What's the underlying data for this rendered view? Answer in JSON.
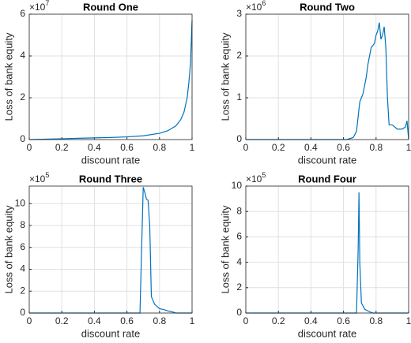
{
  "chart_data": [
    {
      "type": "line",
      "title": "Round One",
      "xlabel": "discount rate",
      "ylabel": "Loss of bank equity",
      "y_multiplier": "×10",
      "y_exponent": "7",
      "x": [
        0,
        0.1,
        0.2,
        0.3,
        0.4,
        0.5,
        0.6,
        0.7,
        0.8,
        0.85,
        0.9,
        0.93,
        0.95,
        0.97,
        0.98,
        0.99,
        1.0
      ],
      "values": [
        0,
        0.02,
        0.04,
        0.06,
        0.08,
        0.1,
        0.13,
        0.18,
        0.3,
        0.42,
        0.65,
        0.95,
        1.3,
        2.0,
        2.7,
        3.6,
        5.7
      ],
      "color": "#0072bd",
      "xlim": [
        0,
        1
      ],
      "ylim": [
        0,
        6
      ],
      "xticks": [
        0,
        0.2,
        0.4,
        0.6,
        0.8,
        1
      ],
      "yticks": [
        0,
        2,
        4,
        6
      ],
      "grid": true
    },
    {
      "type": "line",
      "title": "Round Two",
      "xlabel": "discount rate",
      "ylabel": "Loss of bank equity",
      "y_multiplier": "×10",
      "y_exponent": "6",
      "x": [
        0,
        0.62,
        0.66,
        0.68,
        0.7,
        0.72,
        0.74,
        0.75,
        0.77,
        0.79,
        0.8,
        0.81,
        0.82,
        0.83,
        0.84,
        0.85,
        0.86,
        0.87,
        0.88,
        0.9,
        0.93,
        0.96,
        0.98,
        0.99,
        1.0
      ],
      "values": [
        0,
        0,
        0.05,
        0.2,
        0.9,
        1.1,
        1.5,
        1.8,
        2.2,
        2.3,
        2.5,
        2.6,
        2.8,
        2.4,
        2.5,
        2.7,
        2.2,
        1.0,
        0.35,
        0.35,
        0.25,
        0.25,
        0.3,
        0.45,
        0
      ],
      "color": "#0072bd",
      "xlim": [
        0,
        1
      ],
      "ylim": [
        0,
        3
      ],
      "xticks": [
        0,
        0.2,
        0.4,
        0.6,
        0.8,
        1
      ],
      "yticks": [
        0,
        1,
        2,
        3
      ],
      "grid": true
    },
    {
      "type": "line",
      "title": "Round Three",
      "xlabel": "discount rate",
      "ylabel": "Loss of bank equity",
      "y_multiplier": "×10",
      "y_exponent": "5",
      "x": [
        0,
        0.68,
        0.7,
        0.71,
        0.72,
        0.73,
        0.74,
        0.75,
        0.77,
        0.8,
        0.83,
        0.85,
        0.88,
        0.9,
        1.0
      ],
      "values": [
        0,
        0,
        11.5,
        11.0,
        10.4,
        10.3,
        8.0,
        1.5,
        0.8,
        0.4,
        0.3,
        0.2,
        0.1,
        0,
        0
      ],
      "color": "#0072bd",
      "xlim": [
        0,
        1
      ],
      "ylim": [
        0,
        11.6
      ],
      "xticks": [
        0,
        0.2,
        0.4,
        0.6,
        0.8,
        1
      ],
      "yticks": [
        0,
        2,
        4,
        6,
        8,
        10
      ],
      "grid": true
    },
    {
      "type": "line",
      "title": "Round Four",
      "xlabel": "discount rate",
      "ylabel": "Loss of bank equity",
      "y_multiplier": "×10",
      "y_exponent": "5",
      "x": [
        0,
        0.68,
        0.69,
        0.695,
        0.7,
        0.71,
        0.73,
        0.76,
        0.78,
        1.0
      ],
      "values": [
        0,
        0,
        5.0,
        9.5,
        4.0,
        0.8,
        0.3,
        0.1,
        0,
        0
      ],
      "color": "#0072bd",
      "xlim": [
        0,
        1
      ],
      "ylim": [
        0,
        10
      ],
      "xticks": [
        0,
        0.2,
        0.4,
        0.6,
        0.8,
        1
      ],
      "yticks": [
        0,
        2,
        4,
        6,
        8,
        10
      ],
      "grid": true
    }
  ]
}
